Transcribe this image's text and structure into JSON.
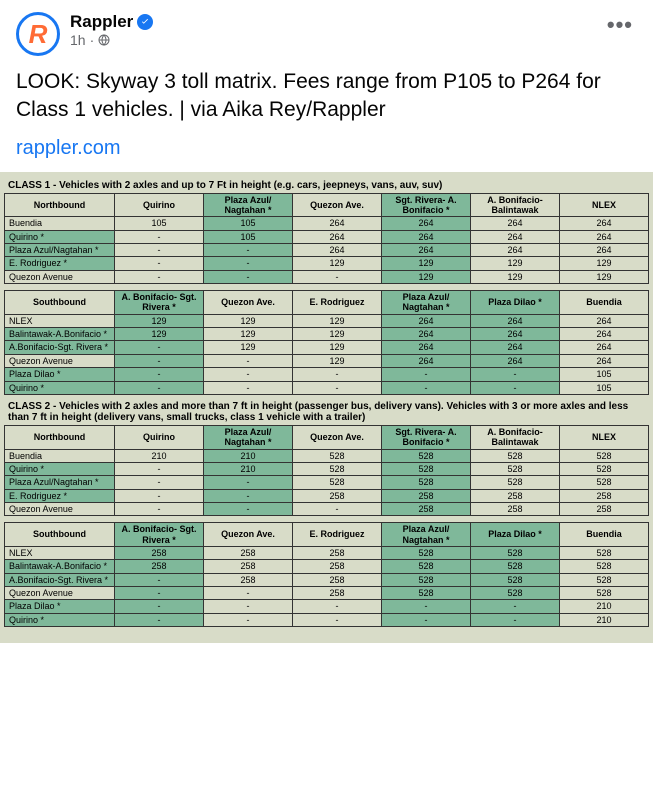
{
  "header": {
    "page_name": "Rappler",
    "timestamp": "1h",
    "separator": "·"
  },
  "post": {
    "text": "LOOK: Skyway 3 toll matrix. Fees range from P105 to P264 for Class 1 vehicles. | via Aika Rey/Rappler",
    "link": "rappler.com"
  },
  "image": {
    "class1": {
      "title": "CLASS 1 - Vehicles with 2 axles and up to 7 Ft in height (e.g. cars, jeepneys, vans, auv, suv)",
      "north": {
        "headers": [
          "Northbound",
          "Quirino",
          "Plaza Azul/ Nagtahan *",
          "Quezon Ave.",
          "Sgt. Rivera- A. Bonifacio *",
          "A. Bonifacio- Balintawak",
          "NLEX"
        ],
        "rows": [
          {
            "o": "Buendia",
            "hl": false,
            "c": [
              "105",
              "105",
              "264",
              "264",
              "264",
              "264"
            ]
          },
          {
            "o": "Quirino *",
            "hl": true,
            "c": [
              "-",
              "105",
              "264",
              "264",
              "264",
              "264"
            ]
          },
          {
            "o": "Plaza Azul/Nagtahan *",
            "hl": true,
            "c": [
              "-",
              "-",
              "264",
              "264",
              "264",
              "264"
            ]
          },
          {
            "o": "E. Rodriguez *",
            "hl": true,
            "c": [
              "-",
              "-",
              "129",
              "129",
              "129",
              "129"
            ]
          },
          {
            "o": "Quezon Avenue",
            "hl": false,
            "c": [
              "-",
              "-",
              "-",
              "129",
              "129",
              "129"
            ]
          }
        ]
      },
      "south": {
        "headers": [
          "Southbound",
          "A. Bonifacio- Sgt. Rivera *",
          "Quezon Ave.",
          "E. Rodriguez",
          "Plaza Azul/ Nagtahan *",
          "Plaza Dilao *",
          "Buendia"
        ],
        "rows": [
          {
            "o": "NLEX",
            "hl": false,
            "c": [
              "129",
              "129",
              "129",
              "264",
              "264",
              "264"
            ]
          },
          {
            "o": "Balintawak-A.Bonifacio *",
            "hl": true,
            "c": [
              "129",
              "129",
              "129",
              "264",
              "264",
              "264"
            ]
          },
          {
            "o": "A.Bonifacio-Sgt. Rivera *",
            "hl": true,
            "c": [
              "-",
              "129",
              "129",
              "264",
              "264",
              "264"
            ]
          },
          {
            "o": "Quezon Avenue",
            "hl": false,
            "c": [
              "-",
              "-",
              "129",
              "264",
              "264",
              "264"
            ]
          },
          {
            "o": "Plaza Dilao *",
            "hl": true,
            "c": [
              "-",
              "-",
              "-",
              "-",
              "-",
              "105"
            ]
          },
          {
            "o": "Quirino *",
            "hl": true,
            "c": [
              "-",
              "-",
              "-",
              "-",
              "-",
              "105"
            ]
          }
        ]
      }
    },
    "class2": {
      "title": "CLASS 2 - Vehicles with 2 axles and more than 7 ft in height (passenger bus, delivery vans). Vehicles with 3 or more axles and less than 7 ft in height (delivery vans, small trucks, class 1 vehicle with a trailer)",
      "north": {
        "headers": [
          "Northbound",
          "Quirino",
          "Plaza Azul/ Nagtahan *",
          "Quezon Ave.",
          "Sgt. Rivera- A. Bonifacio *",
          "A. Bonifacio- Balintawak",
          "NLEX"
        ],
        "rows": [
          {
            "o": "Buendia",
            "hl": false,
            "c": [
              "210",
              "210",
              "528",
              "528",
              "528",
              "528"
            ]
          },
          {
            "o": "Quirino *",
            "hl": true,
            "c": [
              "-",
              "210",
              "528",
              "528",
              "528",
              "528"
            ]
          },
          {
            "o": "Plaza Azul/Nagtahan *",
            "hl": true,
            "c": [
              "-",
              "-",
              "528",
              "528",
              "528",
              "528"
            ]
          },
          {
            "o": "E. Rodriguez *",
            "hl": true,
            "c": [
              "-",
              "-",
              "258",
              "258",
              "258",
              "258"
            ]
          },
          {
            "o": "Quezon Avenue",
            "hl": false,
            "c": [
              "-",
              "-",
              "-",
              "258",
              "258",
              "258"
            ]
          }
        ]
      },
      "south": {
        "headers": [
          "Southbound",
          "A. Bonifacio- Sgt. Rivera *",
          "Quezon Ave.",
          "E. Rodriguez",
          "Plaza Azul/ Nagtahan *",
          "Plaza Dilao *",
          "Buendia"
        ],
        "rows": [
          {
            "o": "NLEX",
            "hl": false,
            "c": [
              "258",
              "258",
              "258",
              "528",
              "528",
              "528"
            ]
          },
          {
            "o": "Balintawak-A.Bonifacio *",
            "hl": true,
            "c": [
              "258",
              "258",
              "258",
              "528",
              "528",
              "528"
            ]
          },
          {
            "o": "A.Bonifacio-Sgt. Rivera *",
            "hl": true,
            "c": [
              "-",
              "258",
              "258",
              "528",
              "528",
              "528"
            ]
          },
          {
            "o": "Quezon Avenue",
            "hl": false,
            "c": [
              "-",
              "-",
              "258",
              "528",
              "528",
              "528"
            ]
          },
          {
            "o": "Plaza Dilao *",
            "hl": true,
            "c": [
              "-",
              "-",
              "-",
              "-",
              "-",
              "210"
            ]
          },
          {
            "o": "Quirino *",
            "hl": true,
            "c": [
              "-",
              "-",
              "-",
              "-",
              "-",
              "210"
            ]
          }
        ]
      }
    },
    "hl_cols_north": [
      2,
      4
    ],
    "hl_cols_south": [
      1,
      4,
      5
    ]
  }
}
